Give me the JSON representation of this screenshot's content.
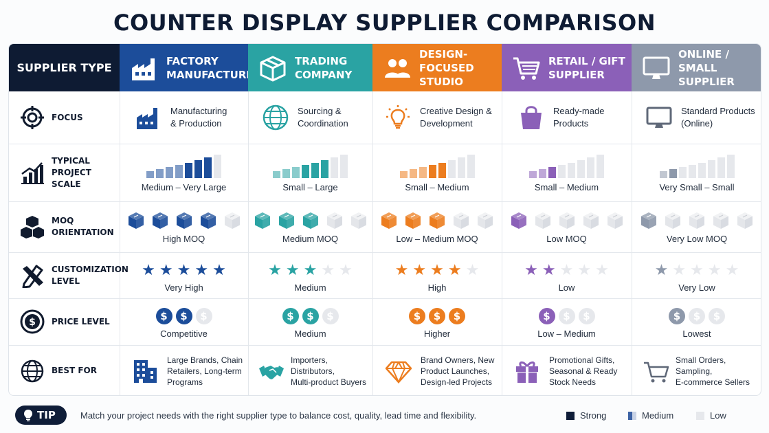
{
  "title": "COUNTER DISPLAY SUPPLIER COMPARISON",
  "header": {
    "first_label": "SUPPLIER TYPE",
    "columns": [
      {
        "label": "FACTORY MANUFACTURER",
        "line1": "FACTORY",
        "line2": "MANUFACTURER",
        "color": "#1c4d9a",
        "icon": "factory-icon"
      },
      {
        "label": "TRADING COMPANY",
        "line1": "TRADING",
        "line2": "COMPANY",
        "color": "#2aa3a3",
        "icon": "box-icon"
      },
      {
        "label": "DESIGN-FOCUSED STUDIO",
        "line1": "DESIGN-FOCUSED",
        "line2": "STUDIO",
        "color": "#ec7d1f",
        "icon": "people-icon"
      },
      {
        "label": "RETAIL / GIFT SUPPLIER",
        "line1": "RETAIL / GIFT",
        "line2": "SUPPLIER",
        "color": "#8b60b8",
        "icon": "cart-icon"
      },
      {
        "label": "ONLINE / SMALL SUPPLIER",
        "line1": "ONLINE / SMALL",
        "line2": "SUPPLIER",
        "color": "#8e99ab",
        "icon": "monitor-icon"
      }
    ]
  },
  "rows": {
    "focus": {
      "label": "FOCUS",
      "icon": "target-icon",
      "cells": [
        {
          "line1": "Manufacturing",
          "line2": "& Production",
          "icon": "factory-icon"
        },
        {
          "line1": "Sourcing &",
          "line2": "Coordination",
          "icon": "globe-icon"
        },
        {
          "line1": "Creative Design &",
          "line2": "Development",
          "icon": "lightbulb-icon"
        },
        {
          "line1": "Ready-made",
          "line2": "Products",
          "icon": "shopping-bag-icon"
        },
        {
          "line1": "Standard Products",
          "line2": "(Online)",
          "icon": "monitor-icon"
        }
      ]
    },
    "scale": {
      "label_line1": "TYPICAL PROJECT",
      "label_line2": "SCALE",
      "icon": "bar-chart-icon",
      "cells": [
        {
          "caption": "Medium – Very Large",
          "filled": 7,
          "strong": 3
        },
        {
          "caption": "Small – Large",
          "filled": 6,
          "strong": 3
        },
        {
          "caption": "Small – Medium",
          "filled": 5,
          "strong": 2
        },
        {
          "caption": "Small – Medium",
          "filled": 3,
          "strong": 1
        },
        {
          "caption": "Very Small – Small",
          "filled": 2,
          "strong": 1
        }
      ]
    },
    "moq": {
      "label_line1": "MOQ",
      "label_line2": "ORIENTATION",
      "icon": "cubes-icon",
      "cells": [
        {
          "caption": "High MOQ",
          "filled": 4
        },
        {
          "caption": "Medium MOQ",
          "filled": 3
        },
        {
          "caption": "Low – Medium MOQ",
          "filled": 3
        },
        {
          "caption": "Low MOQ",
          "filled": 1
        },
        {
          "caption": "Very Low MOQ",
          "filled": 1
        }
      ]
    },
    "customization": {
      "label_line1": "CUSTOMIZATION",
      "label_line2": "LEVEL",
      "icon": "pencil-ruler-icon",
      "cells": [
        {
          "caption": "Very High",
          "stars": 5
        },
        {
          "caption": "Medium",
          "stars": 3
        },
        {
          "caption": "High",
          "stars": 4
        },
        {
          "caption": "Low",
          "stars": 2
        },
        {
          "caption": "Very Low",
          "stars": 1
        }
      ]
    },
    "price": {
      "label": "PRICE LEVEL",
      "icon": "dollar-coin-icon",
      "cells": [
        {
          "caption": "Competitive",
          "coins": 2
        },
        {
          "caption": "Medium",
          "coins": 2
        },
        {
          "caption": "Higher",
          "coins": 3
        },
        {
          "caption": "Low – Medium",
          "coins": 1
        },
        {
          "caption": "Lowest",
          "coins": 1
        }
      ]
    },
    "best_for": {
      "label": "BEST FOR",
      "icon": "globe-icon",
      "cells": [
        {
          "lines": [
            "Large Brands, Chain",
            "Retailers, Long-term",
            "Programs"
          ],
          "icon": "building-icon"
        },
        {
          "lines": [
            "Importers, Distributors,",
            "Multi-product Buyers"
          ],
          "icon": "handshake-icon"
        },
        {
          "lines": [
            "Brand Owners, New",
            "Product Launches,",
            "Design-led Projects"
          ],
          "icon": "diamond-icon"
        },
        {
          "lines": [
            "Promotional Gifts,",
            "Seasonal & Ready",
            "Stock Needs"
          ],
          "icon": "gift-icon"
        },
        {
          "lines": [
            "Small Orders, Sampling,",
            "E-commerce Sellers"
          ],
          "icon": "cart-icon"
        }
      ]
    }
  },
  "tip": {
    "label": "TIP",
    "text": "Match your project needs with the right supplier type to balance cost, quality, lead time and flexibility."
  },
  "legend": [
    {
      "label": "Strong",
      "color": "#0f1d38"
    },
    {
      "label": "Medium",
      "color": "#3d63a5"
    },
    {
      "label": "Low",
      "color": "#e6e8ec"
    }
  ]
}
